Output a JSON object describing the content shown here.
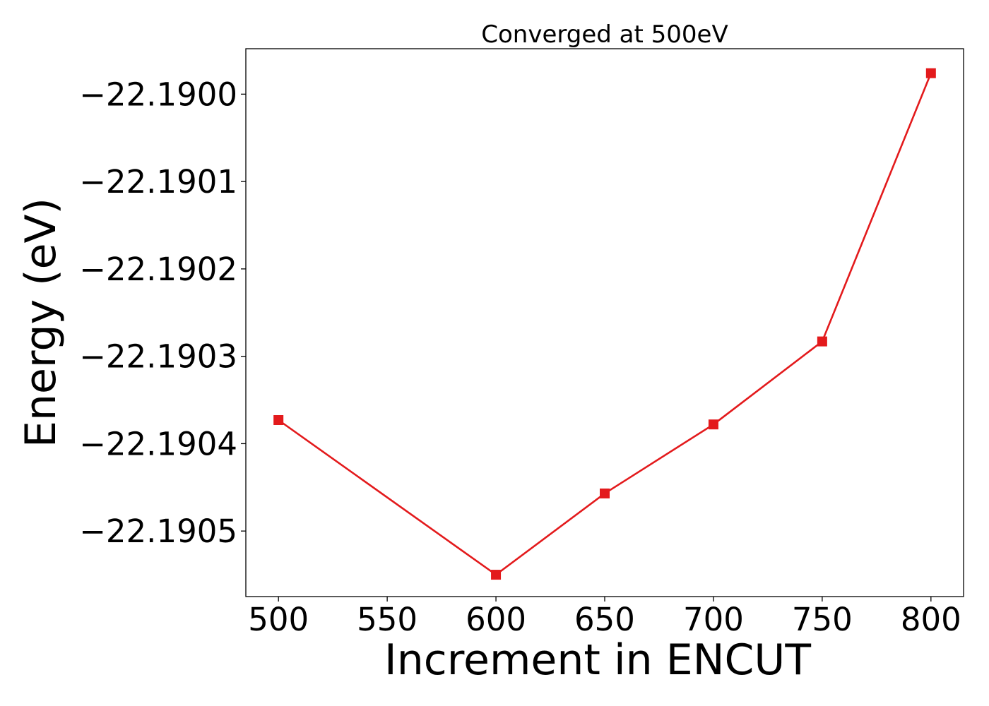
{
  "chart_data": {
    "type": "line",
    "title": "Converged at 500eV",
    "xlabel": "Increment in ENCUT",
    "ylabel": "Energy (eV)",
    "xlim": [
      485,
      815
    ],
    "ylim": [
      -22.190575,
      -22.189948
    ],
    "x_ticks": [
      500,
      550,
      600,
      650,
      700,
      750,
      800
    ],
    "x_tick_labels": [
      "500",
      "550",
      "600",
      "650",
      "700",
      "750",
      "800"
    ],
    "y_ticks": [
      -22.19,
      -22.1901,
      -22.1902,
      -22.1903,
      -22.1904,
      -22.1905
    ],
    "y_tick_labels": [
      "−22.1900",
      "−22.1901",
      "−22.1902",
      "−22.1903",
      "−22.1904",
      "−22.1905"
    ],
    "grid": false,
    "legend": "none",
    "series": [
      {
        "color": "#e31a1c",
        "marker": "square",
        "x": [
          500,
          600,
          650,
          700,
          750,
          800
        ],
        "y": [
          -22.190373,
          -22.19055,
          -22.190457,
          -22.190378,
          -22.190283,
          -22.189976
        ]
      }
    ]
  }
}
